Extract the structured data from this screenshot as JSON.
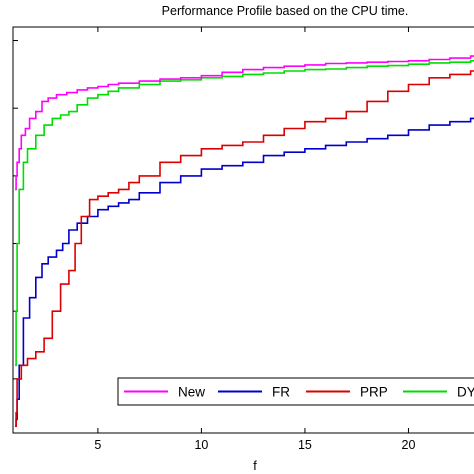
{
  "chart_data": {
    "type": "line",
    "title": "Performance Profile based on the CPU time.",
    "xlabel": "f",
    "ylabel": "",
    "xlim": [
      0.9,
      23.6
    ],
    "ylim": [
      0.42,
      1.02
    ],
    "xticks": [
      5,
      10,
      15,
      20
    ],
    "grid": false,
    "legend_position": "bottom-right",
    "series": [
      {
        "name": "New",
        "color": "#ff00ff",
        "x": [
          1,
          1.05,
          1.1,
          1.2,
          1.3,
          1.5,
          1.7,
          2.0,
          2.3,
          2.6,
          3.0,
          3.5,
          4.0,
          4.5,
          5.0,
          5.5,
          6.0,
          7.0,
          8.0,
          9.0,
          10.0,
          11.0,
          12.0,
          13.0,
          14.0,
          15.0,
          16.0,
          17.0,
          18.0,
          19.0,
          20.0,
          21.0,
          22.0,
          23.0,
          23.6
        ],
        "y": [
          0.78,
          0.8,
          0.82,
          0.84,
          0.86,
          0.87,
          0.885,
          0.895,
          0.91,
          0.915,
          0.92,
          0.923,
          0.927,
          0.93,
          0.932,
          0.935,
          0.937,
          0.94,
          0.943,
          0.945,
          0.948,
          0.953,
          0.957,
          0.96,
          0.962,
          0.964,
          0.966,
          0.967,
          0.968,
          0.969,
          0.97,
          0.972,
          0.974,
          0.977,
          0.978
        ]
      },
      {
        "name": "FR",
        "color": "#0000cc",
        "x": [
          1,
          1.05,
          1.1,
          1.2,
          1.4,
          1.7,
          2.0,
          2.3,
          2.6,
          3.0,
          3.3,
          3.6,
          4.0,
          4.5,
          5.0,
          5.5,
          6.0,
          6.5,
          7.0,
          8.0,
          9.0,
          10.0,
          11.0,
          12.0,
          13.0,
          14.0,
          15.0,
          16.0,
          17.0,
          18.0,
          19.0,
          20.0,
          21.0,
          22.0,
          23.0,
          23.6
        ],
        "y": [
          0.43,
          0.44,
          0.47,
          0.52,
          0.59,
          0.62,
          0.65,
          0.67,
          0.68,
          0.69,
          0.7,
          0.72,
          0.73,
          0.74,
          0.75,
          0.755,
          0.76,
          0.765,
          0.775,
          0.79,
          0.8,
          0.81,
          0.815,
          0.82,
          0.83,
          0.835,
          0.84,
          0.845,
          0.85,
          0.855,
          0.86,
          0.868,
          0.875,
          0.88,
          0.885,
          0.885
        ]
      },
      {
        "name": "PRP",
        "color": "#dd0000",
        "x": [
          1,
          1.05,
          1.1,
          1.3,
          1.6,
          2.0,
          2.4,
          2.8,
          3.2,
          3.6,
          3.9,
          4.2,
          4.6,
          5.0,
          5.5,
          6.0,
          6.5,
          7.0,
          8.0,
          9.0,
          10.0,
          11.0,
          12.0,
          13.0,
          14.0,
          15.0,
          16.0,
          17.0,
          18.0,
          19.0,
          20.0,
          21.0,
          22.0,
          23.0,
          23.6
        ],
        "y": [
          0.43,
          0.45,
          0.5,
          0.52,
          0.53,
          0.54,
          0.56,
          0.6,
          0.64,
          0.66,
          0.7,
          0.74,
          0.765,
          0.77,
          0.775,
          0.78,
          0.79,
          0.8,
          0.82,
          0.83,
          0.84,
          0.845,
          0.85,
          0.86,
          0.87,
          0.88,
          0.885,
          0.895,
          0.91,
          0.925,
          0.935,
          0.945,
          0.95,
          0.955,
          0.955
        ]
      },
      {
        "name": "DY",
        "color": "#00dd00",
        "x": [
          1,
          1.05,
          1.1,
          1.2,
          1.4,
          1.6,
          2.0,
          2.4,
          2.8,
          3.2,
          3.6,
          4.0,
          4.5,
          5.0,
          5.5,
          6.0,
          7.0,
          8.0,
          9.0,
          10.0,
          11.0,
          12.0,
          13.0,
          14.0,
          15.0,
          16.0,
          17.0,
          18.0,
          19.0,
          20.0,
          21.0,
          22.0,
          23.0,
          23.6
        ],
        "y": [
          0.52,
          0.6,
          0.7,
          0.78,
          0.82,
          0.84,
          0.86,
          0.875,
          0.885,
          0.89,
          0.895,
          0.905,
          0.915,
          0.92,
          0.925,
          0.93,
          0.935,
          0.94,
          0.942,
          0.945,
          0.947,
          0.95,
          0.952,
          0.955,
          0.957,
          0.958,
          0.96,
          0.962,
          0.963,
          0.965,
          0.967,
          0.968,
          0.97,
          0.97
        ]
      }
    ]
  }
}
